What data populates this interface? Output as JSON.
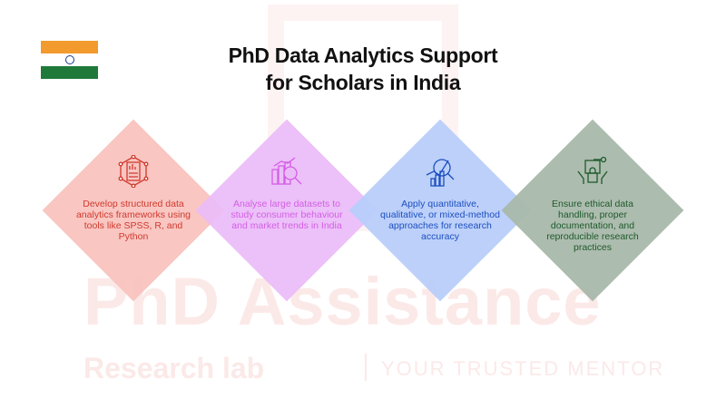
{
  "title": "PhD Data Analytics Support for Scholars in India",
  "title_lines": [
    "PhD Data Analytics Support",
    "for Scholars in India"
  ],
  "flag": {
    "name": "india-flag",
    "colors": [
      "#f29a2e",
      "#ffffff",
      "#1f7a3a"
    ],
    "chakra": "#1b3a8a"
  },
  "watermark": {
    "brand": "PhD Assistance",
    "sub": "Research lab",
    "tagline": "YOUR TRUSTED MENTOR"
  },
  "cards": [
    {
      "icon": "report-network-icon",
      "text": "Develop structured data analytics frameworks using tools like SPSS, R, and Python",
      "bg": "#f9c3bf",
      "color": "#cf3a2d"
    },
    {
      "icon": "chart-magnifier-icon",
      "text": "Analyse large datasets to study consumer behaviour and market trends in India",
      "bg": "#ebbdf8",
      "color": "#d35ee6"
    },
    {
      "icon": "analytics-search-icon",
      "text": "Apply quantitative, qualitative, or mixed-method approaches for research accuracy",
      "bg": "#b8cdfa",
      "color": "#1d4fc0"
    },
    {
      "icon": "secure-data-hands-icon",
      "text": "Ensure ethical data handling, proper documentation, and reproducible research practices",
      "bg": "#a8b8aa",
      "color": "#1e5a2b"
    }
  ]
}
